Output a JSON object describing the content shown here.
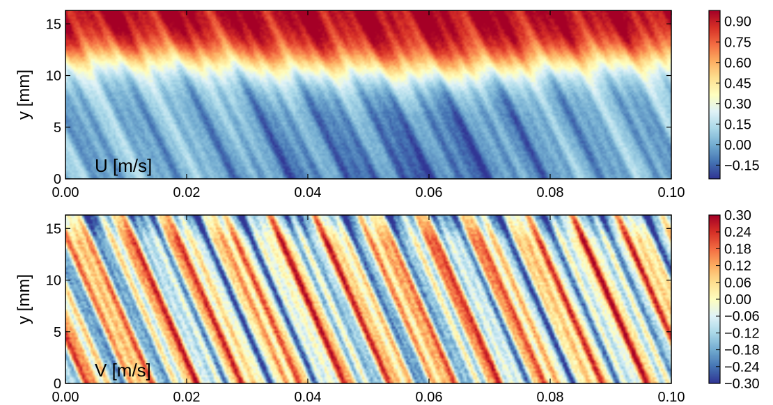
{
  "chart_data": [
    {
      "type": "heatmap",
      "panel_label": "U [m/s]",
      "ylabel": "y [mm]",
      "x_ticks": [
        "0.00",
        "0.02",
        "0.04",
        "0.06",
        "0.08",
        "0.10"
      ],
      "y_ticks": [
        "0",
        "5",
        "10",
        "15"
      ],
      "xlim": [
        0.0,
        0.1
      ],
      "ylim": [
        0,
        16.3
      ],
      "colorbar": {
        "colormap": "RdYlBu_r",
        "range": [
          -0.25,
          0.98
        ],
        "ticks": [
          "0.90",
          "0.75",
          "0.60",
          "0.45",
          "0.30",
          "0.15",
          "0.00",
          "−0.15"
        ]
      }
    },
    {
      "type": "heatmap",
      "panel_label": "V [m/s]",
      "ylabel": "y [mm]",
      "x_ticks": [
        "0.00",
        "0.02",
        "0.04",
        "0.06",
        "0.08",
        "0.10"
      ],
      "y_ticks": [
        "0",
        "5",
        "10",
        "15"
      ],
      "xlim": [
        0.0,
        0.1
      ],
      "ylim": [
        0,
        16.3
      ],
      "colorbar": {
        "colormap": "RdYlBu_r",
        "range": [
          -0.3,
          0.3
        ],
        "ticks": [
          "0.30",
          "0.24",
          "0.18",
          "0.12",
          "0.06",
          "0.00",
          "−0.06",
          "−0.12",
          "−0.18",
          "−0.24",
          "−0.30"
        ]
      }
    }
  ],
  "colors": [
    "#313695",
    "#4575b4",
    "#74add1",
    "#abd9e9",
    "#e0f3f8",
    "#ffffbf",
    "#fee090",
    "#fdae61",
    "#f46d43",
    "#d73027",
    "#a50026"
  ]
}
